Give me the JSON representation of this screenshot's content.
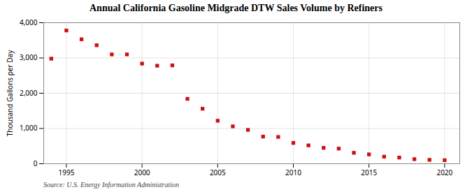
{
  "chart_data": {
    "type": "scatter",
    "title": "Annual California Gasoline Midgrade DTW Sales Volume by Refiners",
    "ylabel": "Thousand Gallons per Day",
    "source": "Source: U.S. Energy Information Administration",
    "x": [
      1994,
      1995,
      1996,
      1997,
      1998,
      1999,
      2000,
      2001,
      2002,
      2003,
      2004,
      2005,
      2006,
      2007,
      2008,
      2009,
      2010,
      2011,
      2012,
      2013,
      2014,
      2015,
      2016,
      2017,
      2018,
      2019,
      2020
    ],
    "values": [
      2980,
      3780,
      3530,
      3360,
      3100,
      3100,
      2840,
      2780,
      2790,
      1840,
      1560,
      1220,
      1060,
      960,
      770,
      760,
      590,
      520,
      450,
      430,
      310,
      265,
      200,
      175,
      130,
      110,
      100
    ],
    "color": "#cc1111",
    "marker": "square",
    "xlim": [
      1993.5,
      2021
    ],
    "ylim": [
      0,
      4000
    ],
    "xticks": [
      1995,
      2000,
      2005,
      2010,
      2015,
      2020
    ],
    "yticks": [
      0,
      {
        "value": 1000,
        "label": "1,000"
      },
      {
        "value": 2000,
        "label": "2,000"
      },
      {
        "value": 3000,
        "label": "3,000"
      },
      {
        "value": 4000,
        "label": "4,000"
      }
    ],
    "grid": true
  }
}
